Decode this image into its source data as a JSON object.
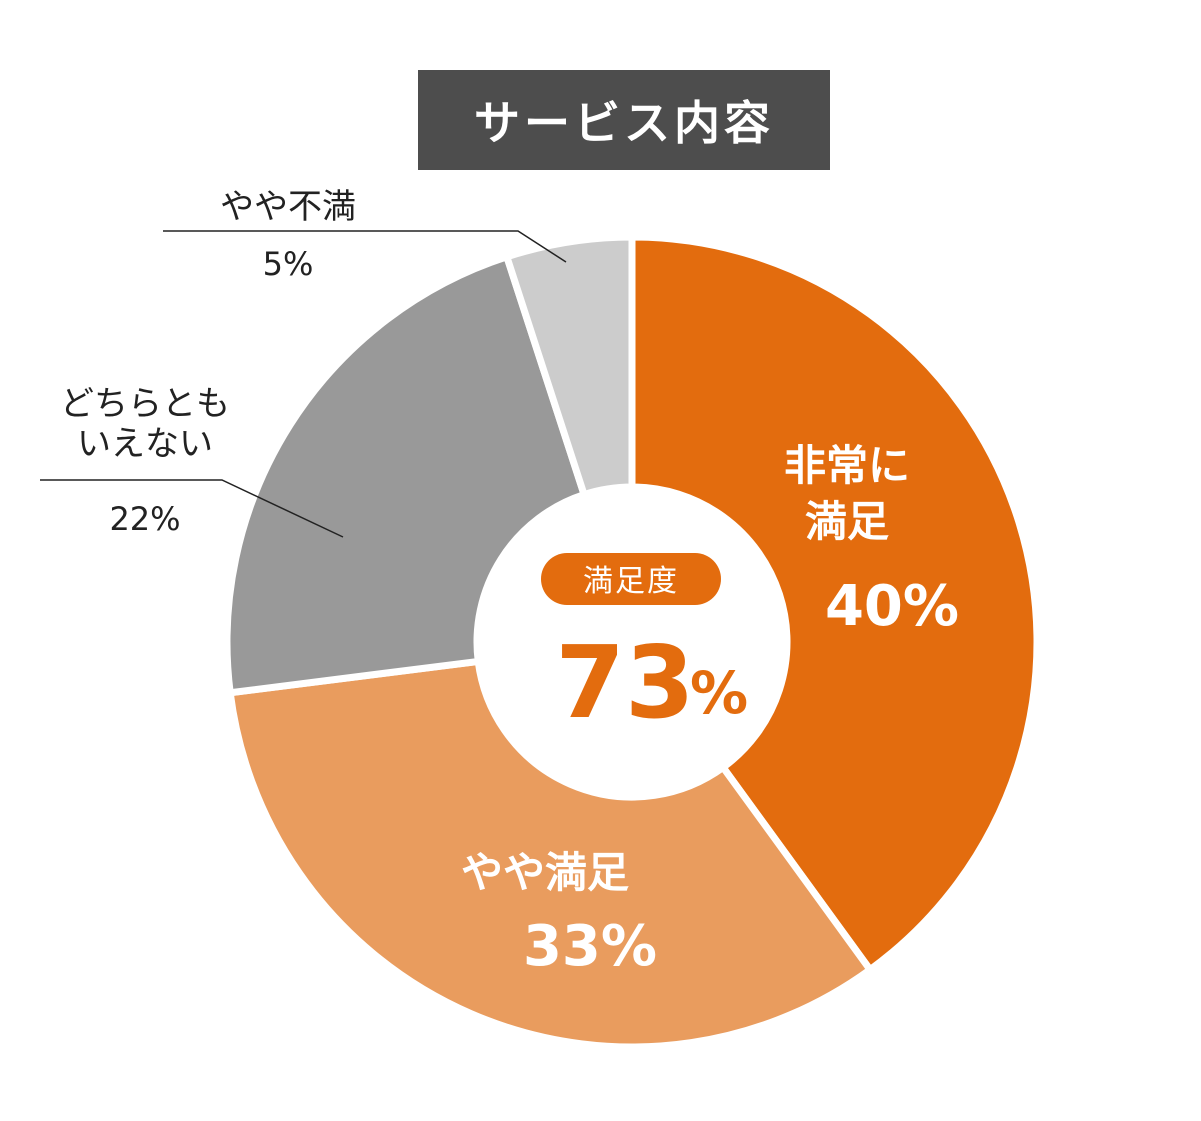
{
  "chart_data": {
    "type": "pie",
    "title": "サービス内容",
    "slices": [
      {
        "label": "非常に満足",
        "label_lines": [
          "非常に",
          "満足"
        ],
        "value": 40,
        "value_label": "40%",
        "color": "#e36c0e",
        "label_position": "inside"
      },
      {
        "label": "やや満足",
        "label_lines": [
          "やや満足"
        ],
        "value": 33,
        "value_label": "33%",
        "color": "#e99c5e",
        "label_position": "inside"
      },
      {
        "label": "どちらともいえない",
        "label_lines": [
          "どちらとも",
          "いえない"
        ],
        "value": 22,
        "value_label": "22%",
        "color": "#999999",
        "label_position": "outside"
      },
      {
        "label": "やや不満",
        "label_lines": [
          "やや不満"
        ],
        "value": 5,
        "value_label": "5%",
        "color": "#cccccc",
        "label_position": "outside"
      }
    ],
    "center": {
      "badge": "満足度",
      "value": "73",
      "unit": "%",
      "color": "#e36c0e"
    }
  }
}
